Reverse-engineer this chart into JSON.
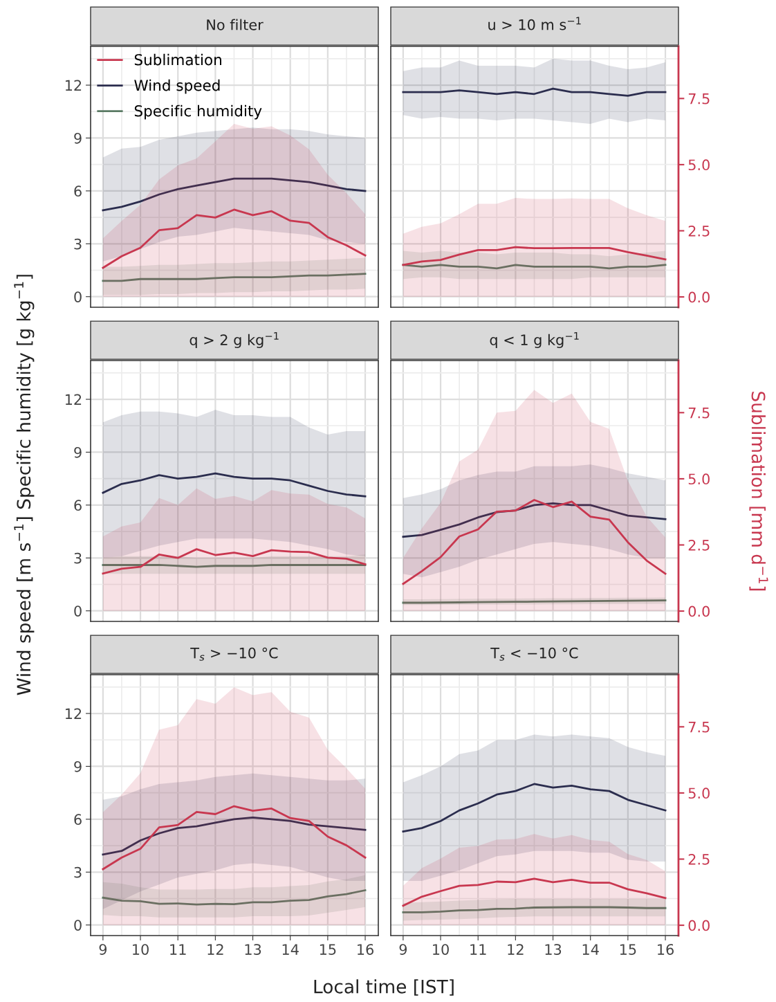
{
  "chart_data": [
    {
      "type": "line",
      "title": "No filter",
      "xlabel": "Local time [IST]",
      "ylabel": "Wind speed [m s$^{−1}$] Specific humidity [g kg$^{−1}$]",
      "x": [
        9,
        9.5,
        10,
        10.5,
        11,
        11.5,
        12,
        12.5,
        13,
        13.5,
        14,
        14.5,
        15,
        15.5,
        16
      ],
      "xlim": [
        8.67,
        16.35
      ],
      "ylim": [
        -0.6,
        14.2
      ],
      "yticks": [
        0,
        3,
        6,
        9,
        12
      ],
      "y2lim": [
        -0.39,
        9.47
      ],
      "grid": true,
      "legend": "top left",
      "line_style": "solid",
      "series": [
        {
          "name": "Sublimation",
          "color": "#c8374f",
          "axis": "y2",
          "values": [
            1.1,
            1.54,
            1.86,
            2.52,
            2.6,
            3.09,
            3.0,
            3.3,
            3.09,
            3.24,
            2.88,
            2.8,
            2.26,
            1.95,
            1.57
          ],
          "lower": [
            0,
            0,
            0,
            0,
            0,
            0,
            0,
            0,
            0,
            0,
            0,
            0,
            0,
            0,
            0
          ],
          "upper": [
            2.21,
            2.87,
            3.48,
            4.44,
            4.97,
            5.23,
            5.88,
            6.54,
            6.36,
            6.45,
            6.1,
            5.58,
            4.62,
            3.92,
            3.13
          ]
        },
        {
          "name": "Wind speed",
          "color": "#2b2d4e",
          "values": [
            4.9,
            5.1,
            5.4,
            5.8,
            6.1,
            6.3,
            6.5,
            6.7,
            6.7,
            6.7,
            6.6,
            6.5,
            6.3,
            6.1,
            6.0
          ],
          "lower": [
            2.0,
            2.3,
            2.7,
            3.1,
            3.4,
            3.5,
            3.7,
            3.9,
            3.8,
            3.7,
            3.6,
            3.5,
            3.2,
            3.1,
            3.0
          ],
          "upper": [
            7.9,
            8.4,
            8.5,
            8.9,
            9.1,
            9.3,
            9.4,
            9.5,
            9.6,
            9.5,
            9.5,
            9.4,
            9.2,
            9.1,
            9.0
          ]
        },
        {
          "name": "Specific humidity",
          "color": "#5a7a64",
          "values": [
            0.9,
            0.9,
            1.0,
            1.0,
            1.0,
            1.0,
            1.05,
            1.1,
            1.1,
            1.1,
            1.15,
            1.2,
            1.2,
            1.25,
            1.3
          ],
          "lower": [
            0.1,
            0.1,
            0.1,
            0.15,
            0.15,
            0.2,
            0.2,
            0.25,
            0.25,
            0.3,
            0.3,
            0.35,
            0.4,
            0.4,
            0.45
          ],
          "upper": [
            1.7,
            1.7,
            1.75,
            1.8,
            1.8,
            1.85,
            1.9,
            1.9,
            1.95,
            2.0,
            2.0,
            2.05,
            2.1,
            2.15,
            2.2
          ]
        }
      ]
    },
    {
      "type": "line",
      "title": "u > 10 m s$^{−1}$",
      "x": [
        9,
        9.5,
        10,
        10.5,
        11,
        11.5,
        12,
        12.5,
        13,
        13.5,
        14,
        14.5,
        15,
        15.5,
        16
      ],
      "xlim": [
        8.67,
        16.35
      ],
      "ylim": [
        -0.6,
        14.2
      ],
      "y2lim": [
        -0.39,
        9.47
      ],
      "y2ticks": [
        {
          "value": 0,
          "label": "0.0"
        },
        {
          "value": 2.5,
          "label": "2.5"
        },
        {
          "value": 5,
          "label": "5.0"
        },
        {
          "value": 7.5,
          "label": "7.5"
        }
      ],
      "grid": true,
      "line_style": "solid",
      "series": [
        {
          "color": "#c8374f",
          "axis": "y2",
          "values": [
            1.21,
            1.34,
            1.4,
            1.6,
            1.77,
            1.77,
            1.88,
            1.84,
            1.84,
            1.85,
            1.85,
            1.85,
            1.69,
            1.56,
            1.42
          ],
          "lower": [
            0,
            0,
            0,
            0,
            0,
            0,
            0,
            0,
            0,
            0,
            0,
            0,
            0,
            0,
            0
          ],
          "upper": [
            2.39,
            2.65,
            2.78,
            3.13,
            3.52,
            3.52,
            3.74,
            3.7,
            3.7,
            3.72,
            3.7,
            3.7,
            3.35,
            3.09,
            2.87
          ]
        },
        {
          "color": "#2b2d4e",
          "values": [
            11.6,
            11.6,
            11.6,
            11.7,
            11.6,
            11.5,
            11.6,
            11.5,
            11.8,
            11.6,
            11.6,
            11.5,
            11.4,
            11.6,
            11.6
          ],
          "lower": [
            10.3,
            10.1,
            10.2,
            10.1,
            10.1,
            10.0,
            10.1,
            10.1,
            10.0,
            9.9,
            9.8,
            10.1,
            9.9,
            10.1,
            10.0
          ],
          "upper": [
            12.8,
            13.0,
            13.0,
            13.4,
            13.1,
            13.1,
            13.1,
            13.0,
            13.5,
            13.4,
            13.4,
            13.1,
            12.9,
            13.0,
            13.3
          ]
        },
        {
          "color": "#5a7a64",
          "values": [
            1.8,
            1.7,
            1.8,
            1.7,
            1.7,
            1.6,
            1.8,
            1.7,
            1.7,
            1.7,
            1.7,
            1.6,
            1.7,
            1.7,
            1.8
          ],
          "lower": [
            1.0,
            1.1,
            1.1,
            1.0,
            1.0,
            1.0,
            1.0,
            1.0,
            1.0,
            1.0,
            1.1,
            1.1,
            1.1,
            1.1,
            1.1
          ],
          "upper": [
            2.6,
            2.5,
            2.6,
            2.5,
            2.5,
            2.4,
            2.5,
            2.5,
            2.5,
            2.4,
            2.4,
            2.3,
            2.4,
            2.5,
            2.6
          ]
        }
      ]
    },
    {
      "type": "line",
      "title": "q > 2 g kg$^{−1}$",
      "x": [
        9,
        9.5,
        10,
        10.5,
        11,
        11.5,
        12,
        12.5,
        13,
        13.5,
        14,
        14.5,
        15,
        15.5,
        16
      ],
      "xlim": [
        8.67,
        16.35
      ],
      "ylim": [
        -0.6,
        14.2
      ],
      "yticks": [
        0,
        3,
        6,
        9,
        12
      ],
      "y2lim": [
        -0.39,
        9.47
      ],
      "grid": true,
      "line_style": "solid",
      "series": [
        {
          "color": "#c8374f",
          "axis": "y2",
          "values": [
            1.42,
            1.6,
            1.67,
            2.14,
            2.01,
            2.34,
            2.12,
            2.21,
            2.08,
            2.3,
            2.25,
            2.23,
            2.02,
            1.98,
            1.77
          ],
          "lower": [
            0,
            0,
            0,
            0,
            0,
            0,
            0,
            0,
            0,
            0,
            0,
            0,
            0,
            0,
            0
          ],
          "upper": [
            2.82,
            3.2,
            3.35,
            4.27,
            4.01,
            4.64,
            4.24,
            4.35,
            4.15,
            4.57,
            4.44,
            4.4,
            4.05,
            3.92,
            3.5
          ]
        },
        {
          "color": "#2b2d4e",
          "values": [
            6.7,
            7.2,
            7.4,
            7.7,
            7.5,
            7.6,
            7.8,
            7.6,
            7.5,
            7.5,
            7.4,
            7.1,
            6.8,
            6.6,
            6.5
          ],
          "lower": [
            3.0,
            3.1,
            3.4,
            3.7,
            3.9,
            4.1,
            4.1,
            4.1,
            4.1,
            4.0,
            3.9,
            3.7,
            3.5,
            3.2,
            3.1
          ],
          "upper": [
            10.7,
            11.1,
            11.3,
            11.3,
            11.2,
            11.0,
            11.4,
            11.1,
            11.1,
            11.0,
            11.0,
            10.4,
            10.0,
            10.2,
            10.2
          ]
        },
        {
          "color": "#5a7a64",
          "values": [
            2.6,
            2.6,
            2.6,
            2.6,
            2.55,
            2.5,
            2.55,
            2.55,
            2.55,
            2.6,
            2.6,
            2.6,
            2.6,
            2.6,
            2.6
          ],
          "lower": [
            2.1,
            2.1,
            2.1,
            2.1,
            2.1,
            2.1,
            2.1,
            2.1,
            2.1,
            2.1,
            2.1,
            2.1,
            2.1,
            2.1,
            2.1
          ],
          "upper": [
            3.0,
            3.1,
            3.1,
            3.1,
            3.1,
            3.0,
            3.0,
            3.0,
            3.0,
            3.1,
            3.1,
            3.1,
            3.1,
            3.1,
            3.2
          ]
        }
      ]
    },
    {
      "type": "line",
      "title": "q < 1 g kg$^{−1}$",
      "y2label": "Sublimation [mm d$^{−1}$]",
      "x": [
        9,
        9.5,
        10,
        10.5,
        11,
        11.5,
        12,
        12.5,
        13,
        13.5,
        14,
        14.5,
        15,
        15.5,
        16
      ],
      "xlim": [
        8.67,
        16.35
      ],
      "ylim": [
        -0.6,
        14.2
      ],
      "y2lim": [
        -0.39,
        9.47
      ],
      "y2ticks": [
        {
          "value": 0,
          "label": "0.0"
        },
        {
          "value": 2.5,
          "label": "2.5"
        },
        {
          "value": 5,
          "label": "5.0"
        },
        {
          "value": 7.5,
          "label": "7.5"
        }
      ],
      "grid": true,
      "line_style": "solid",
      "series": [
        {
          "color": "#c8374f",
          "axis": "y2",
          "values": [
            1.03,
            1.51,
            2.04,
            2.82,
            3.09,
            3.76,
            3.8,
            4.2,
            3.93,
            4.14,
            3.57,
            3.46,
            2.6,
            1.91,
            1.41
          ],
          "lower": [
            0,
            0,
            0,
            0,
            0,
            0,
            0,
            0,
            0,
            0,
            0,
            0,
            0,
            0,
            0
          ],
          "upper": [
            2.01,
            3.13,
            4.09,
            5.66,
            6.1,
            7.5,
            7.57,
            8.36,
            7.87,
            8.22,
            7.15,
            6.89,
            4.92,
            3.57,
            2.78
          ]
        },
        {
          "color": "#2b2d4e",
          "values": [
            4.2,
            4.3,
            4.6,
            4.9,
            5.3,
            5.6,
            5.7,
            6.0,
            6.1,
            6.0,
            6.0,
            5.7,
            5.4,
            5.3,
            5.2
          ],
          "lower": [
            2.1,
            1.9,
            2.2,
            2.5,
            2.9,
            3.2,
            3.5,
            3.8,
            3.9,
            3.8,
            3.7,
            3.5,
            3.2,
            3.0,
            3.0
          ],
          "upper": [
            6.4,
            6.6,
            6.9,
            7.4,
            7.7,
            7.9,
            7.9,
            8.2,
            8.2,
            8.2,
            8.3,
            8.1,
            7.8,
            7.6,
            7.4
          ]
        },
        {
          "color": "#5a7a64",
          "values": [
            0.46,
            0.46,
            0.47,
            0.48,
            0.49,
            0.5,
            0.51,
            0.52,
            0.53,
            0.54,
            0.55,
            0.56,
            0.57,
            0.58,
            0.59
          ],
          "lower": [
            0.33,
            0.33,
            0.34,
            0.34,
            0.35,
            0.35,
            0.36,
            0.36,
            0.37,
            0.37,
            0.38,
            0.38,
            0.39,
            0.39,
            0.4
          ],
          "upper": [
            0.66,
            0.66,
            0.67,
            0.68,
            0.69,
            0.7,
            0.7,
            0.71,
            0.72,
            0.72,
            0.73,
            0.73,
            0.74,
            0.74,
            0.75
          ]
        }
      ]
    },
    {
      "type": "line",
      "title": "T$_{s}$ > −10 °C",
      "x": [
        9,
        9.5,
        10,
        10.5,
        11,
        11.5,
        12,
        12.5,
        13,
        13.5,
        14,
        14.5,
        15,
        15.5,
        16
      ],
      "xlim": [
        8.67,
        16.35
      ],
      "xticks": [
        9,
        10,
        11,
        12,
        13,
        14,
        15,
        16
      ],
      "ylim": [
        -0.6,
        14.2
      ],
      "yticks": [
        0,
        3,
        6,
        9,
        12
      ],
      "y2lim": [
        -0.39,
        9.47
      ],
      "grid": true,
      "line_style": "solid",
      "series": [
        {
          "color": "#c8374f",
          "axis": "y2",
          "values": [
            2.12,
            2.56,
            2.89,
            3.7,
            3.79,
            4.28,
            4.2,
            4.5,
            4.33,
            4.41,
            4.05,
            3.94,
            3.35,
            3.02,
            2.56
          ],
          "lower": [
            0,
            0,
            0,
            0,
            0,
            0,
            0,
            0,
            0,
            0,
            0,
            0,
            0,
            0,
            0
          ],
          "upper": [
            4.27,
            4.94,
            5.75,
            7.39,
            7.56,
            8.55,
            8.37,
            8.99,
            8.7,
            8.81,
            8.07,
            7.85,
            6.63,
            5.93,
            5.16
          ]
        },
        {
          "color": "#2b2d4e",
          "values": [
            4.0,
            4.2,
            4.8,
            5.2,
            5.5,
            5.6,
            5.8,
            6.0,
            6.1,
            6.0,
            5.9,
            5.7,
            5.6,
            5.5,
            5.4
          ],
          "lower": [
            0.9,
            1.4,
            1.9,
            2.3,
            2.7,
            2.9,
            3.1,
            3.4,
            3.5,
            3.4,
            3.3,
            3.0,
            2.7,
            2.5,
            2.5
          ],
          "upper": [
            7.1,
            7.3,
            7.7,
            8.0,
            8.1,
            8.2,
            8.4,
            8.5,
            8.6,
            8.5,
            8.4,
            8.3,
            8.2,
            8.2,
            8.3
          ]
        },
        {
          "color": "#5a7a64",
          "values": [
            1.55,
            1.38,
            1.35,
            1.2,
            1.22,
            1.16,
            1.2,
            1.18,
            1.29,
            1.29,
            1.38,
            1.42,
            1.62,
            1.75,
            1.97
          ],
          "lower": [
            0.57,
            0.5,
            0.5,
            0.43,
            0.43,
            0.43,
            0.43,
            0.43,
            0.5,
            0.5,
            0.5,
            0.54,
            0.7,
            0.85,
            1.02
          ],
          "upper": [
            2.43,
            2.34,
            2.14,
            2.01,
            2.01,
            2.01,
            2.04,
            2.04,
            2.14,
            2.14,
            2.21,
            2.27,
            2.47,
            2.6,
            2.83
          ]
        }
      ]
    },
    {
      "type": "line",
      "title": "T$_{s}$ < −10 °C",
      "x": [
        9,
        9.5,
        10,
        10.5,
        11,
        11.5,
        12,
        12.5,
        13,
        13.5,
        14,
        14.5,
        15,
        15.5,
        16
      ],
      "xlim": [
        8.67,
        16.35
      ],
      "xticks": [
        9,
        10,
        11,
        12,
        13,
        14,
        15,
        16
      ],
      "ylim": [
        -0.6,
        14.2
      ],
      "y2lim": [
        -0.39,
        9.47
      ],
      "y2ticks": [
        {
          "value": 0,
          "label": "0.0"
        },
        {
          "value": 2.5,
          "label": "2.5"
        },
        {
          "value": 5,
          "label": "5.0"
        },
        {
          "value": 7.5,
          "label": "7.5"
        }
      ],
      "grid": true,
      "line_style": "solid",
      "series": [
        {
          "color": "#c8374f",
          "axis": "y2",
          "values": [
            0.74,
            1.08,
            1.29,
            1.49,
            1.52,
            1.65,
            1.63,
            1.76,
            1.63,
            1.72,
            1.61,
            1.61,
            1.36,
            1.21,
            1.03
          ],
          "lower": [
            0,
            0,
            0,
            0,
            0,
            0,
            0,
            0,
            0,
            0,
            0,
            0,
            0,
            0,
            0
          ],
          "upper": [
            1.49,
            2.16,
            2.52,
            2.93,
            3.0,
            3.24,
            3.26,
            3.45,
            3.28,
            3.41,
            3.22,
            3.16,
            2.69,
            2.47,
            2.04
          ]
        },
        {
          "color": "#2b2d4e",
          "values": [
            5.3,
            5.5,
            5.9,
            6.5,
            6.9,
            7.4,
            7.6,
            8.0,
            7.8,
            7.9,
            7.7,
            7.6,
            7.1,
            6.8,
            6.5
          ],
          "lower": [
            2.5,
            2.5,
            2.8,
            3.1,
            3.5,
            3.9,
            4.0,
            4.2,
            4.2,
            4.2,
            4.1,
            4.1,
            3.7,
            3.6,
            3.6
          ],
          "upper": [
            8.1,
            8.5,
            9.0,
            9.7,
            9.9,
            10.5,
            10.5,
            10.8,
            10.7,
            10.8,
            10.7,
            10.6,
            10.1,
            9.8,
            9.6
          ]
        },
        {
          "color": "#5a7a64",
          "values": [
            0.72,
            0.72,
            0.76,
            0.83,
            0.85,
            0.92,
            0.93,
            0.99,
            1.0,
            1.01,
            1.01,
            1.01,
            0.99,
            0.96,
            0.96
          ],
          "lower": [
            0.24,
            0.28,
            0.3,
            0.33,
            0.37,
            0.43,
            0.46,
            0.49,
            0.49,
            0.49,
            0.49,
            0.49,
            0.49,
            0.49,
            0.49
          ],
          "upper": [
            1.25,
            1.29,
            1.33,
            1.38,
            1.42,
            1.46,
            1.48,
            1.48,
            1.48,
            1.48,
            1.48,
            1.48,
            1.48,
            1.48,
            1.48
          ]
        }
      ]
    }
  ]
}
